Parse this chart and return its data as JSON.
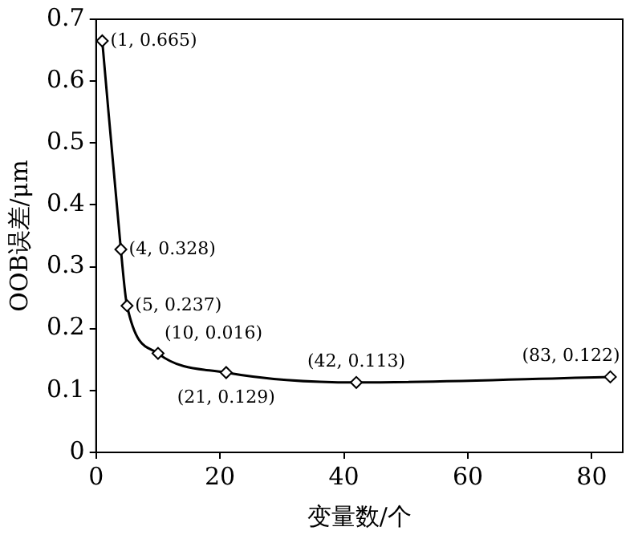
{
  "chart_data": {
    "type": "line",
    "xlabel": "变量数/个",
    "ylabel": "OOB误差/μm",
    "x": [
      1,
      4,
      5,
      10,
      21,
      42,
      83
    ],
    "series": [
      {
        "color": "#000000",
        "values": [
          0.665,
          0.328,
          0.237,
          0.16,
          0.129,
          0.113,
          0.122
        ]
      }
    ],
    "xlim": [
      0,
      85
    ],
    "xticks": [
      0,
      20,
      40,
      60,
      80
    ],
    "ylim": [
      0,
      0.7
    ],
    "yticks": [
      0,
      0.1,
      0.2,
      0.3,
      0.4,
      0.5,
      0.6,
      0.7
    ],
    "grid": false,
    "legend": false,
    "marker": "diamond",
    "line_style": "solid",
    "annotations": [
      {
        "text": "(1, 0.665)",
        "x": 1,
        "y": 0.665
      },
      {
        "text": "(4, 0.328)",
        "x": 4,
        "y": 0.328
      },
      {
        "text": "(5, 0.237)",
        "x": 5,
        "y": 0.237
      },
      {
        "text": "(10, 0.016)",
        "x": 10,
        "y": 0.16
      },
      {
        "text": "(21, 0.129)",
        "x": 21,
        "y": 0.129
      },
      {
        "text": "(42, 0.113)",
        "x": 42,
        "y": 0.113
      },
      {
        "text": "(83, 0.122)",
        "x": 83,
        "y": 0.122
      }
    ]
  }
}
